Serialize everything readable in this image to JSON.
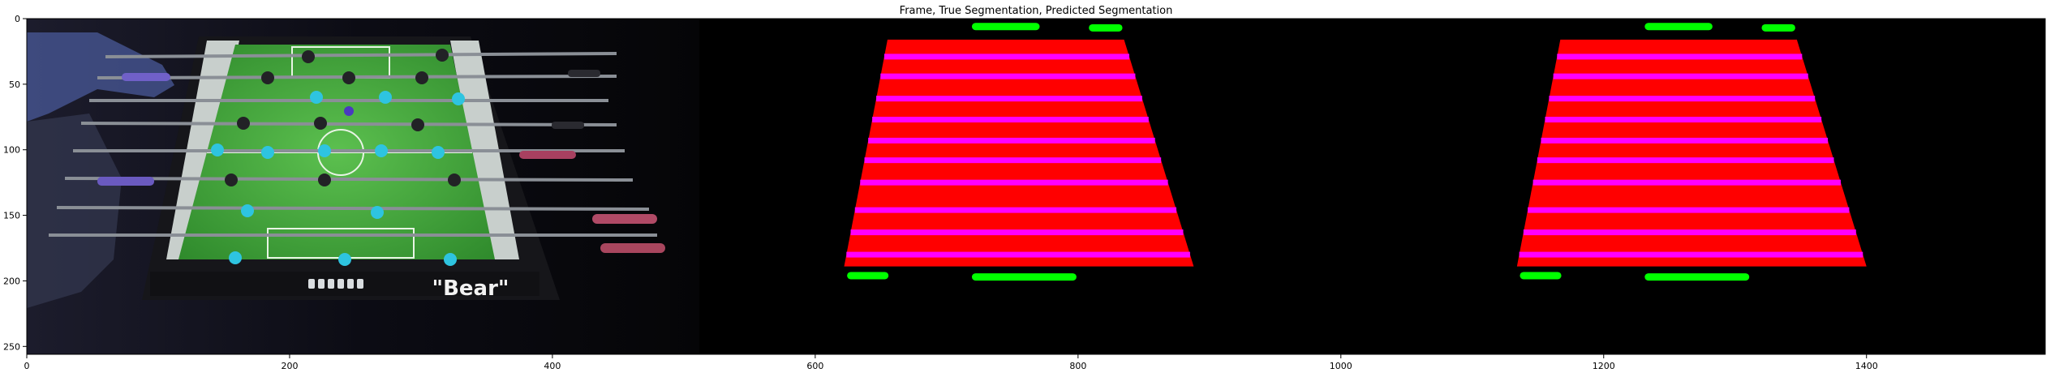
{
  "figure": {
    "title": "Frame, True Segmentation, Predicted Segmentation",
    "image_extent": {
      "width": 1536,
      "height": 256
    },
    "x_ticks": [
      0,
      200,
      400,
      600,
      800,
      1000,
      1200,
      1400
    ],
    "y_ticks": [
      0,
      50,
      100,
      150,
      200,
      250
    ]
  },
  "panels": [
    {
      "name": "frame",
      "label_text": "\"Bear\"",
      "table_offset_x": 0
    },
    {
      "name": "true-segmentation",
      "table_offset_x": 0
    },
    {
      "name": "predicted-segmentation",
      "table_offset_x": 512
    }
  ],
  "colors": {
    "background": "#000000",
    "table_fill": "#ff0000",
    "rod_stripe": "#ff00ff",
    "goal_marker": "#00ff00",
    "field_green": "#3fa83a",
    "frame_dark": "#16161a",
    "player_cyan": "#2ec4e0",
    "player_dark": "#222226"
  }
}
